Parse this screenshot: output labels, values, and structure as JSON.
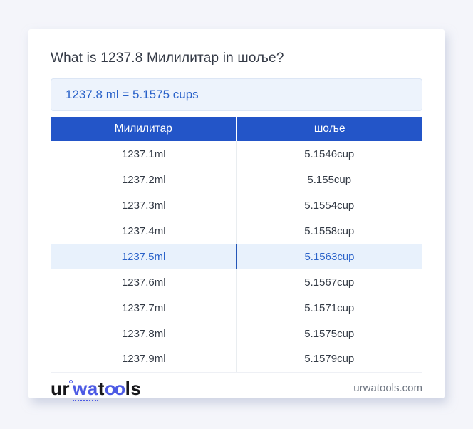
{
  "title": "What is 1237.8 Милилитар in шоље?",
  "answer": {
    "text": "1237.8 ml = 5.1575 cups"
  },
  "table": {
    "headers": [
      "Милилитар",
      "шоље"
    ],
    "rows": [
      {
        "ml": "1237.1ml",
        "cup": "5.1546cup",
        "highlight": false
      },
      {
        "ml": "1237.2ml",
        "cup": "5.155cup",
        "highlight": false
      },
      {
        "ml": "1237.3ml",
        "cup": "5.1554cup",
        "highlight": false
      },
      {
        "ml": "1237.4ml",
        "cup": "5.1558cup",
        "highlight": false
      },
      {
        "ml": "1237.5ml",
        "cup": "5.1563cup",
        "highlight": true
      },
      {
        "ml": "1237.6ml",
        "cup": "5.1567cup",
        "highlight": false
      },
      {
        "ml": "1237.7ml",
        "cup": "5.1571cup",
        "highlight": false
      },
      {
        "ml": "1237.8ml",
        "cup": "5.1575cup",
        "highlight": false
      },
      {
        "ml": "1237.9ml",
        "cup": "5.1579cup",
        "highlight": false
      }
    ]
  },
  "footer": {
    "logo": {
      "seg1": "ur",
      "seg2": "wa",
      "seg3": "t",
      "seg4": "oo",
      "seg5": "ls"
    },
    "domain": "urwatools.com"
  },
  "colors": {
    "page_bg": "#f4f5fa",
    "card_bg": "#ffffff",
    "title_color": "#343a46",
    "answer_bg": "#edf3fc",
    "answer_border": "#dce6f5",
    "accent_blue": "#2a62c9",
    "header_bg": "#2355c8",
    "header_text": "#ffffff",
    "highlight_bg": "#e8f1fc",
    "highlight_divider": "#2456b8",
    "row_text": "#333a45",
    "logo_dark": "#17171b",
    "logo_blue": "#4c5ae4",
    "muted_text": "#6f7682"
  }
}
